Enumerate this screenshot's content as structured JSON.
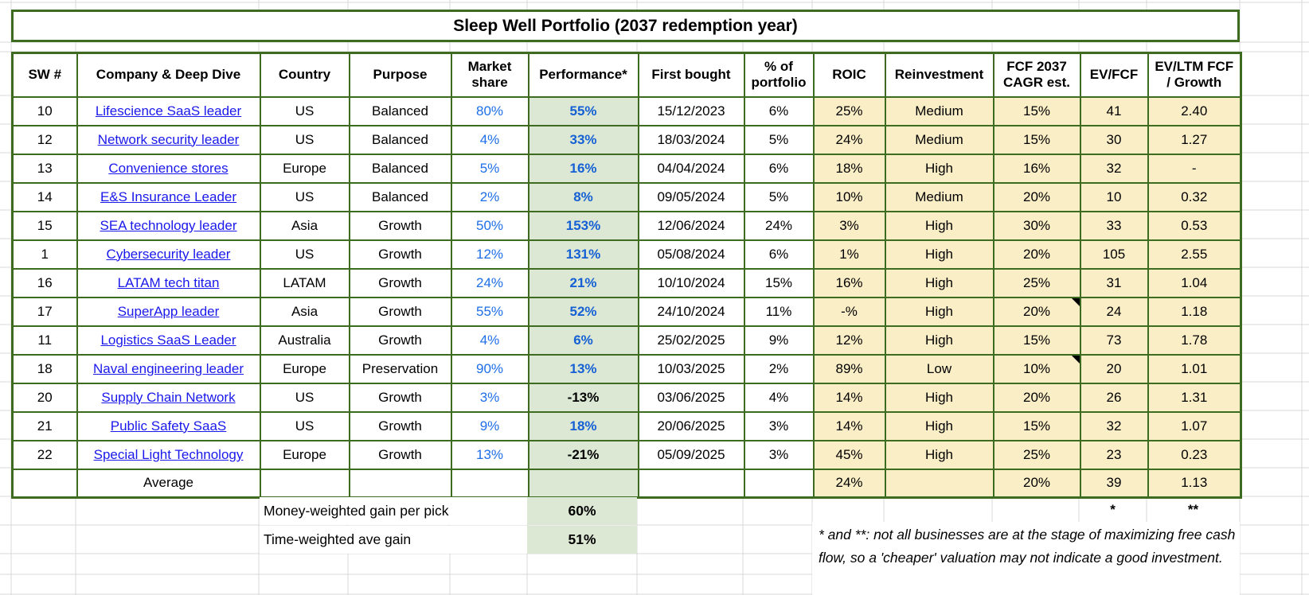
{
  "title": "Sleep Well Portfolio (2037 redemption year)",
  "colors": {
    "border-green": "#3d6b1f",
    "fill-tan": "#faeec6",
    "fill-green": "#dce8d4",
    "link-blue": "#1a18eb",
    "value-blue": "#1d6ee8",
    "performance-blue": "#1560d4",
    "grid-gray": "#d9d9d9"
  },
  "table": {
    "columns": [
      {
        "key": "sw",
        "label": "SW #"
      },
      {
        "key": "company",
        "label": "Company & Deep Dive"
      },
      {
        "key": "country",
        "label": "Country"
      },
      {
        "key": "purpose",
        "label": "Purpose"
      },
      {
        "key": "market_share",
        "label": "Market share"
      },
      {
        "key": "performance",
        "label": "Performance*"
      },
      {
        "key": "first_bought",
        "label": "First bought"
      },
      {
        "key": "pct_portfolio",
        "label": "% of portfolio"
      },
      {
        "key": "roic",
        "label": "ROIC"
      },
      {
        "key": "reinvestment",
        "label": "Reinvestment"
      },
      {
        "key": "fcf_cagr",
        "label": "FCF 2037 CAGR est."
      },
      {
        "key": "ev_fcf",
        "label": "EV/FCF"
      },
      {
        "key": "ev_ltm",
        "label": "EV/LTM FCF / Growth"
      }
    ],
    "rows": [
      {
        "sw": "10",
        "company": "Lifescience SaaS leader",
        "country": "US",
        "purpose": "Balanced",
        "market_share": "80%",
        "performance": "55%",
        "first_bought": "15/12/2023",
        "pct_portfolio": "6%",
        "roic": "25%",
        "reinvestment": "Medium",
        "fcf_cagr": "15%",
        "ev_fcf": "41",
        "ev_ltm": "2.40",
        "comment_flag": false
      },
      {
        "sw": "12",
        "company": "Network security leader",
        "country": "US",
        "purpose": "Balanced",
        "market_share": "4%",
        "performance": "33%",
        "first_bought": "18/03/2024",
        "pct_portfolio": "5%",
        "roic": "24%",
        "reinvestment": "Medium",
        "fcf_cagr": "15%",
        "ev_fcf": "30",
        "ev_ltm": "1.27",
        "comment_flag": false
      },
      {
        "sw": "13",
        "company": "Convenience stores",
        "country": "Europe",
        "purpose": "Balanced",
        "market_share": "5%",
        "performance": "16%",
        "first_bought": "04/04/2024",
        "pct_portfolio": "6%",
        "roic": "18%",
        "reinvestment": "High",
        "fcf_cagr": "16%",
        "ev_fcf": "32",
        "ev_ltm": "-",
        "comment_flag": false
      },
      {
        "sw": "14",
        "company": "E&S Insurance Leader",
        "country": "US",
        "purpose": "Balanced",
        "market_share": "2%",
        "performance": "8%",
        "first_bought": "09/05/2024",
        "pct_portfolio": "5%",
        "roic": "10%",
        "reinvestment": "Medium",
        "fcf_cagr": "20%",
        "ev_fcf": "10",
        "ev_ltm": "0.32",
        "comment_flag": false
      },
      {
        "sw": "15",
        "company": "SEA technology leader",
        "country": "Asia",
        "purpose": "Growth",
        "market_share": "50%",
        "performance": "153%",
        "first_bought": "12/06/2024",
        "pct_portfolio": "24%",
        "roic": "3%",
        "reinvestment": "High",
        "fcf_cagr": "30%",
        "ev_fcf": "33",
        "ev_ltm": "0.53",
        "comment_flag": false
      },
      {
        "sw": "1",
        "company": "Cybersecurity leader",
        "country": "US",
        "purpose": "Growth",
        "market_share": "12%",
        "performance": "131%",
        "first_bought": "05/08/2024",
        "pct_portfolio": "6%",
        "roic": "1%",
        "reinvestment": "High",
        "fcf_cagr": "20%",
        "ev_fcf": "105",
        "ev_ltm": "2.55",
        "comment_flag": false
      },
      {
        "sw": "16",
        "company": "LATAM tech titan",
        "country": "LATAM",
        "purpose": "Growth",
        "market_share": "24%",
        "performance": "21%",
        "first_bought": "10/10/2024",
        "pct_portfolio": "15%",
        "roic": "16%",
        "reinvestment": "High",
        "fcf_cagr": "25%",
        "ev_fcf": "31",
        "ev_ltm": "1.04",
        "comment_flag": false
      },
      {
        "sw": "17",
        "company": "SuperApp leader",
        "country": "Asia",
        "purpose": "Growth",
        "market_share": "55%",
        "performance": "52%",
        "first_bought": "24/10/2024",
        "pct_portfolio": "11%",
        "roic": "-%",
        "reinvestment": "High",
        "fcf_cagr": "20%",
        "ev_fcf": "24",
        "ev_ltm": "1.18",
        "comment_flag": true
      },
      {
        "sw": "11",
        "company": "Logistics SaaS Leader",
        "country": "Australia",
        "purpose": "Growth",
        "market_share": "4%",
        "performance": "6%",
        "first_bought": "25/02/2025",
        "pct_portfolio": "9%",
        "roic": "12%",
        "reinvestment": "High",
        "fcf_cagr": "15%",
        "ev_fcf": "73",
        "ev_ltm": "1.78",
        "comment_flag": false
      },
      {
        "sw": "18",
        "company": "Naval engineering leader",
        "country": "Europe",
        "purpose": "Preservation",
        "market_share": "90%",
        "performance": "13%",
        "first_bought": "10/03/2025",
        "pct_portfolio": "2%",
        "roic": "89%",
        "reinvestment": "Low",
        "fcf_cagr": "10%",
        "ev_fcf": "20",
        "ev_ltm": "1.01",
        "comment_flag": true
      },
      {
        "sw": "20",
        "company": "Supply Chain Network",
        "country": "US",
        "purpose": "Growth",
        "market_share": "3%",
        "performance": "-13%",
        "first_bought": "03/06/2025",
        "pct_portfolio": "4%",
        "roic": "14%",
        "reinvestment": "High",
        "fcf_cagr": "20%",
        "ev_fcf": "26",
        "ev_ltm": "1.31",
        "comment_flag": false
      },
      {
        "sw": "21",
        "company": "Public Safety SaaS",
        "country": "US",
        "purpose": "Growth",
        "market_share": "9%",
        "performance": "18%",
        "first_bought": "20/06/2025",
        "pct_portfolio": "3%",
        "roic": "14%",
        "reinvestment": "High",
        "fcf_cagr": "15%",
        "ev_fcf": "32",
        "ev_ltm": "1.07",
        "comment_flag": false
      },
      {
        "sw": "22",
        "company": "Special Light Technology",
        "country": "Europe",
        "purpose": "Growth",
        "market_share": "13%",
        "performance": "-21%",
        "first_bought": "05/09/2025",
        "pct_portfolio": "3%",
        "roic": "45%",
        "reinvestment": "High",
        "fcf_cagr": "25%",
        "ev_fcf": "23",
        "ev_ltm": "0.23",
        "comment_flag": false
      }
    ],
    "average": {
      "sw": "",
      "company": "Average",
      "country": "",
      "purpose": "",
      "market_share": "",
      "performance": "",
      "first_bought": "",
      "pct_portfolio": "",
      "roic": "24%",
      "reinvestment": "",
      "fcf_cagr": "20%",
      "ev_fcf": "39",
      "ev_ltm": "1.13"
    }
  },
  "summary": {
    "money_weighted_label": "Money-weighted gain per pick",
    "money_weighted_value": "60%",
    "time_weighted_label": "Time-weighted ave gain",
    "time_weighted_value": "51%",
    "star": "*",
    "double_star": "**"
  },
  "footnote": "* and **: not all businesses are at the stage of maximizing free cash flow, so a 'cheaper' valuation may not indicate a good investment."
}
